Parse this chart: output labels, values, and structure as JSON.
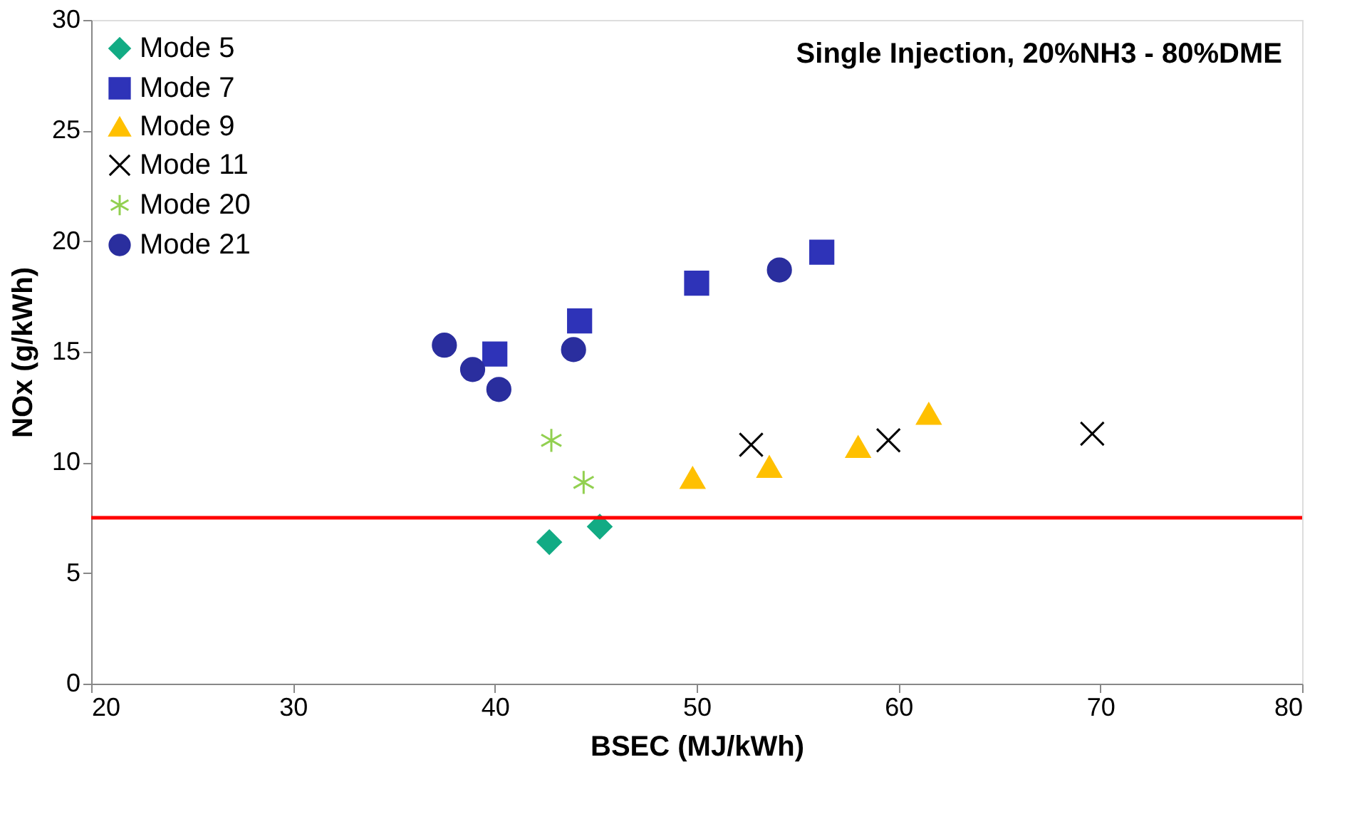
{
  "chart_data": {
    "type": "scatter",
    "xlabel": "BSEC (MJ/kWh)",
    "ylabel": "NOx (g/kWh)",
    "annotations": [
      "Single Injection, 20%NH3 - 80%DME"
    ],
    "xlim": [
      20,
      80
    ],
    "xticks": [
      20,
      30,
      40,
      50,
      60,
      70,
      80
    ],
    "ylim": [
      0,
      30
    ],
    "yticks": [
      0,
      5,
      10,
      15,
      20,
      25,
      30
    ],
    "grid": false,
    "legend": "top left",
    "ref_lines": [
      {
        "axis": "y",
        "value": 7.5,
        "color": "#ff0000"
      }
    ],
    "series": [
      {
        "name": "Mode 5",
        "color": "#12ab84",
        "marker": "diamond",
        "x": [
          42.7,
          45.2
        ],
        "values": [
          6.4,
          7.1
        ]
      },
      {
        "name": "Mode 7",
        "color": "#2e33b8",
        "marker": "square",
        "x": [
          40.0,
          44.2,
          50.0,
          56.2
        ],
        "values": [
          14.9,
          16.4,
          18.1,
          19.5
        ]
      },
      {
        "name": "Mode 9",
        "color": "#ffc000",
        "marker": "triangle",
        "x": [
          49.8,
          53.6,
          58.0,
          61.5
        ],
        "values": [
          9.3,
          9.8,
          10.7,
          12.2
        ]
      },
      {
        "name": "Mode 11",
        "color": "#000000",
        "marker": "cross",
        "x": [
          52.7,
          59.5,
          69.6
        ],
        "values": [
          10.8,
          11.0,
          11.3
        ]
      },
      {
        "name": "Mode 20",
        "color": "#92d050",
        "marker": "cross",
        "x": [
          42.8,
          44.4
        ],
        "values": [
          11.0,
          9.1
        ]
      },
      {
        "name": "Mode 21",
        "color": "#2a2e9e",
        "marker": "circle",
        "x": [
          37.5,
          38.9,
          40.2,
          43.9,
          54.1
        ],
        "values": [
          15.3,
          14.2,
          13.3,
          15.1,
          18.7
        ]
      }
    ]
  }
}
